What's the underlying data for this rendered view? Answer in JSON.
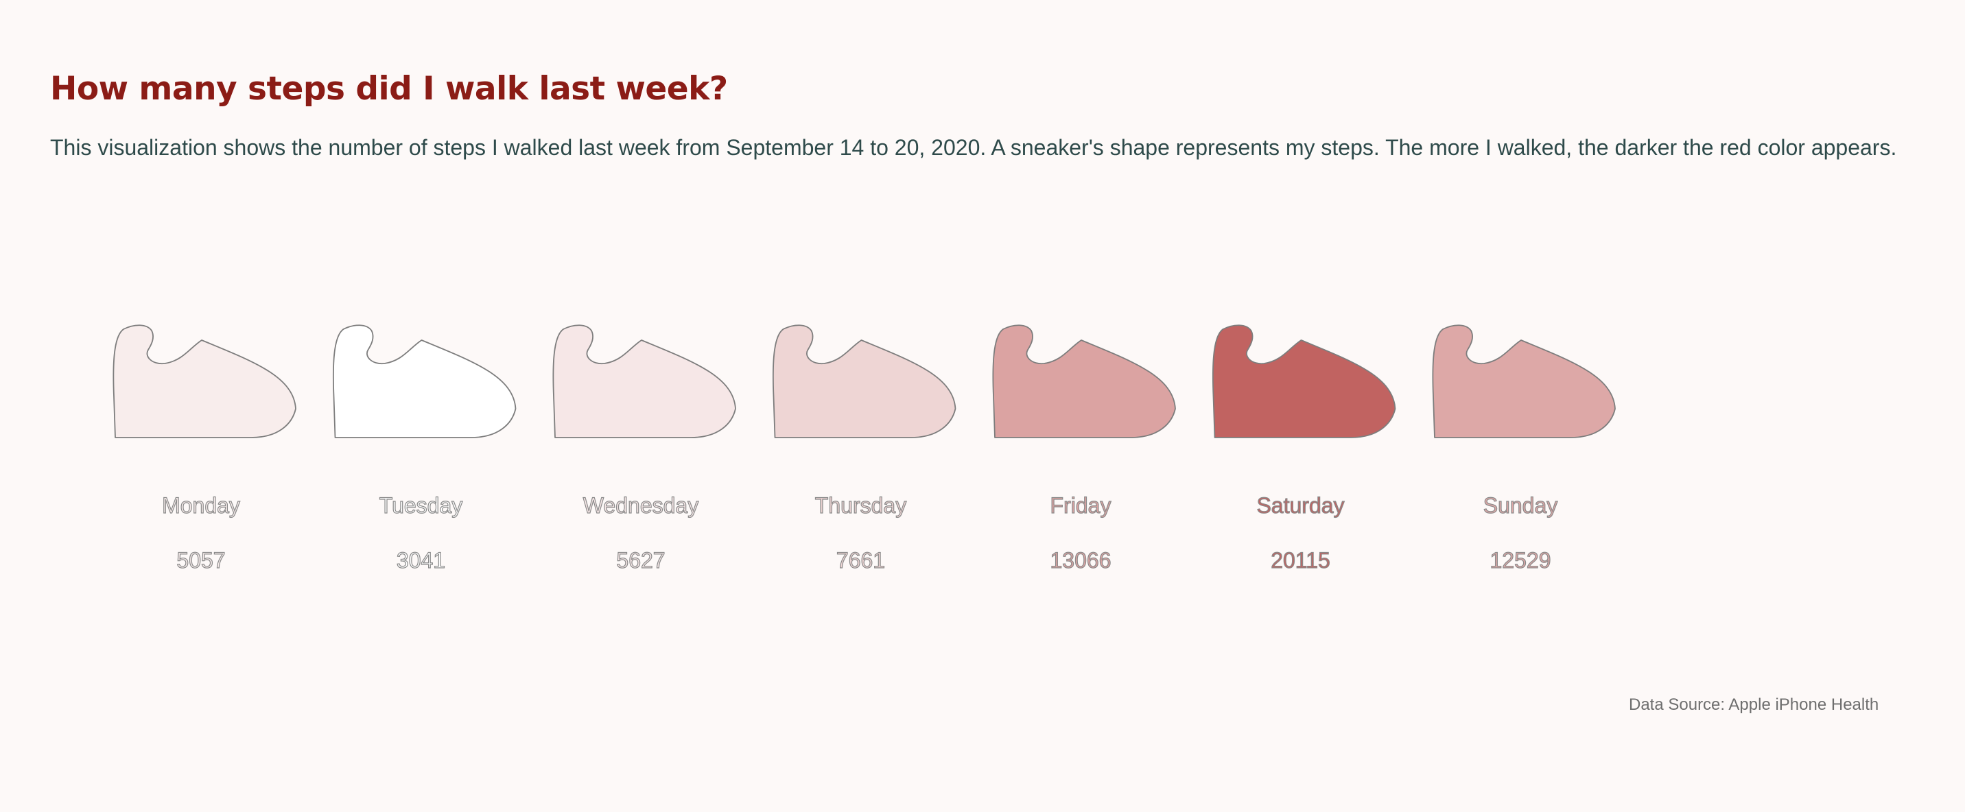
{
  "header": {
    "title": "How many steps did I walk last week?",
    "subtitle": "This visualization shows the number of steps I walked last week from September 14 to 20, 2020. A sneaker's shape represents my steps. The more I walked, the darker the red color appears."
  },
  "footer": {
    "source": "Data Source: Apple iPhone Health"
  },
  "chart_data": {
    "type": "pictogram",
    "icon": "sneaker-icon",
    "encoding": "color intensity (white to red) proportional to steps",
    "categories": [
      "Monday",
      "Tuesday",
      "Wednesday",
      "Thursday",
      "Friday",
      "Saturday",
      "Sunday"
    ],
    "values": [
      5057,
      3041,
      5627,
      7661,
      13066,
      20115,
      12529
    ],
    "color_scale": {
      "low": "#ffffff",
      "high": "#c16361"
    }
  }
}
